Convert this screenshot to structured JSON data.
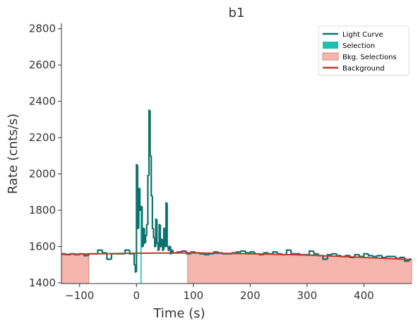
{
  "chart_data": {
    "type": "lightcurve",
    "title": "b1",
    "xlabel": "Time (s)",
    "ylabel": "Rate (cnts/s)",
    "xlim": [
      -132,
      484
    ],
    "ylim": [
      1396,
      2830
    ],
    "xticks": [
      {
        "value": -100,
        "label": "−100"
      },
      0,
      100,
      200,
      300,
      400
    ],
    "yticks": [
      1400,
      1600,
      1800,
      2000,
      2200,
      2400,
      2600,
      2800
    ],
    "legend": "upper right",
    "light_curve": {
      "name": "Light Curve",
      "color": "#0f716c",
      "bins": [
        -132,
        -124,
        -116,
        -108,
        -100,
        -92,
        -84,
        -76,
        -68,
        -60,
        -52,
        -44,
        -36,
        -28,
        -20,
        -12,
        -4,
        -2,
        0,
        2,
        4,
        6,
        8,
        10,
        12,
        14,
        16,
        18,
        20,
        22,
        24,
        26,
        28,
        30,
        32,
        34,
        36,
        38,
        40,
        42,
        44,
        46,
        48,
        50,
        52,
        54,
        56,
        58,
        60,
        62,
        64,
        72,
        80,
        88,
        96,
        104,
        112,
        120,
        128,
        136,
        144,
        152,
        160,
        168,
        176,
        184,
        192,
        200,
        208,
        216,
        224,
        232,
        240,
        248,
        256,
        264,
        272,
        280,
        288,
        296,
        304,
        312,
        320,
        328,
        336,
        344,
        352,
        360,
        368,
        376,
        384,
        392,
        400,
        408,
        416,
        424,
        432,
        440,
        448,
        456,
        464,
        472,
        480,
        484
      ],
      "values": [
        1560,
        1555,
        1560,
        1555,
        1560,
        1550,
        1560,
        1560,
        1580,
        1565,
        1530,
        1560,
        1560,
        1560,
        1580,
        1560,
        1500,
        1460,
        2050,
        1700,
        1920,
        1800,
        1820,
        1600,
        1700,
        1620,
        1660,
        1720,
        1990,
        2350,
        2100,
        1880,
        1700,
        1650,
        1600,
        1750,
        1620,
        1580,
        1720,
        1600,
        1640,
        1580,
        1700,
        1600,
        1840,
        1600,
        1580,
        1600,
        1560,
        1580,
        1565,
        1570,
        1575,
        1560,
        1570,
        1565,
        1560,
        1555,
        1560,
        1570,
        1565,
        1560,
        1560,
        1565,
        1570,
        1575,
        1565,
        1570,
        1560,
        1555,
        1565,
        1560,
        1570,
        1560,
        1555,
        1580,
        1560,
        1560,
        1555,
        1555,
        1575,
        1560,
        1550,
        1530,
        1555,
        1560,
        1550,
        1545,
        1550,
        1540,
        1555,
        1545,
        1560,
        1550,
        1545,
        1550,
        1540,
        1545,
        1545,
        1535,
        1540,
        1520,
        1530
      ]
    },
    "selection": {
      "name": "Selection",
      "color": "#1fbfb0",
      "range": [
        7,
        9
      ]
    },
    "bkg_selections": {
      "name": "Bkg. Selections",
      "color": "#f4b6af",
      "intervals": [
        [
          -132,
          -84
        ],
        [
          90,
          484
        ]
      ]
    },
    "background": {
      "name": "Background",
      "color": "#c0392b",
      "x": [
        -132,
        0,
        100,
        200,
        300,
        400,
        484
      ],
      "values": [
        1557,
        1563,
        1565,
        1560,
        1553,
        1540,
        1528
      ]
    }
  }
}
